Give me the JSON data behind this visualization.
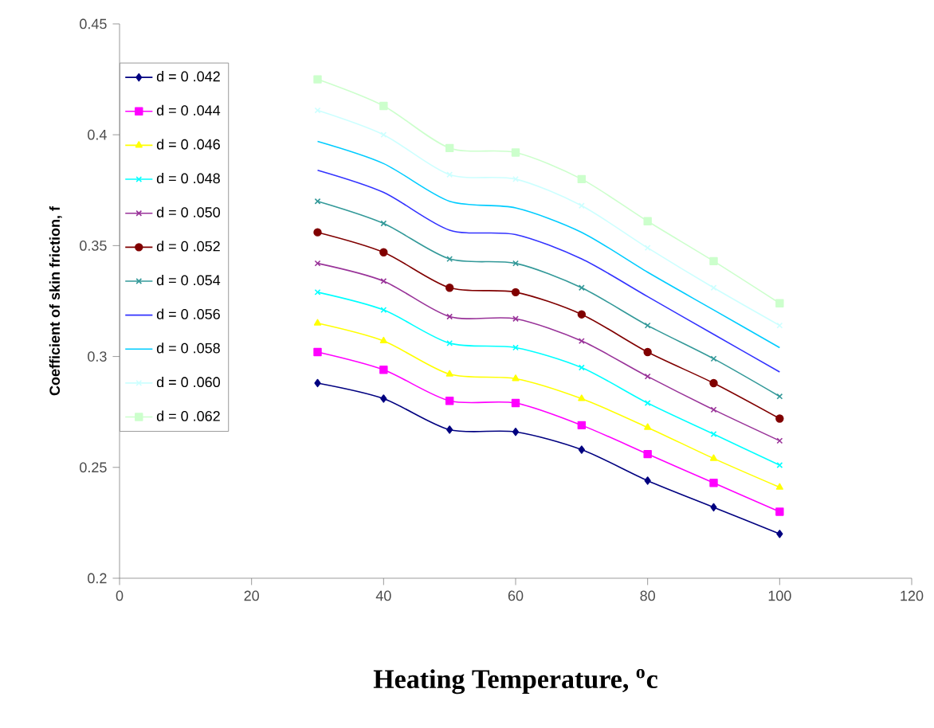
{
  "chart_data": {
    "type": "line",
    "xlabel": "Heating Temperature, $^{o}$c",
    "ylabel": "Coefficient of skin friction, f",
    "x": [
      30,
      40,
      50,
      60,
      70,
      80,
      90,
      100
    ],
    "xlim": [
      0,
      120
    ],
    "xticks": [
      0,
      20,
      40,
      60,
      80,
      100,
      120
    ],
    "ylim": [
      0.2,
      0.45
    ],
    "yticks": [
      0.2,
      0.25,
      0.3,
      0.35,
      0.4,
      0.45
    ],
    "legend": "top left",
    "grid": false,
    "series": [
      {
        "name": "d = 0 .042",
        "color": "#000080",
        "marker": "diamond",
        "values": [
          0.288,
          0.281,
          0.267,
          0.266,
          0.258,
          0.244,
          0.232,
          0.22
        ]
      },
      {
        "name": "d = 0 .044",
        "color": "#ff00ff",
        "marker": "square",
        "values": [
          0.302,
          0.294,
          0.28,
          0.279,
          0.269,
          0.256,
          0.243,
          0.23
        ]
      },
      {
        "name": "d = 0 .046",
        "color": "#ffff00",
        "marker": "triangle",
        "values": [
          0.315,
          0.307,
          0.292,
          0.29,
          0.281,
          0.268,
          0.254,
          0.241
        ]
      },
      {
        "name": "d = 0 .048",
        "color": "#00ffff",
        "marker": "cross",
        "values": [
          0.329,
          0.321,
          0.306,
          0.304,
          0.295,
          0.279,
          0.265,
          0.251
        ]
      },
      {
        "name": "d = 0 .050",
        "color": "#993399",
        "marker": "cross",
        "values": [
          0.342,
          0.334,
          0.318,
          0.317,
          0.307,
          0.291,
          0.276,
          0.262
        ]
      },
      {
        "name": "d = 0 .052",
        "color": "#800000",
        "marker": "circle",
        "values": [
          0.356,
          0.347,
          0.331,
          0.329,
          0.319,
          0.302,
          0.288,
          0.272
        ]
      },
      {
        "name": "d = 0 .054",
        "color": "#339999",
        "marker": "cross",
        "values": [
          0.37,
          0.36,
          0.344,
          0.342,
          0.331,
          0.314,
          0.299,
          0.282
        ]
      },
      {
        "name": "d = 0 .056",
        "color": "#3333ff",
        "marker": "none",
        "values": [
          0.384,
          0.374,
          0.357,
          0.355,
          0.344,
          0.327,
          0.31,
          0.293
        ]
      },
      {
        "name": "d = 0 .058",
        "color": "#00ccff",
        "marker": "none",
        "values": [
          0.397,
          0.387,
          0.37,
          0.367,
          0.356,
          0.338,
          0.321,
          0.304
        ]
      },
      {
        "name": "d = 0 .060",
        "color": "#ccffff",
        "marker": "cross",
        "values": [
          0.411,
          0.4,
          0.382,
          0.38,
          0.368,
          0.349,
          0.331,
          0.314
        ]
      },
      {
        "name": "d = 0 .062",
        "color": "#ccffcc",
        "marker": "square",
        "values": [
          0.425,
          0.413,
          0.394,
          0.392,
          0.38,
          0.361,
          0.343,
          0.324
        ]
      }
    ]
  }
}
